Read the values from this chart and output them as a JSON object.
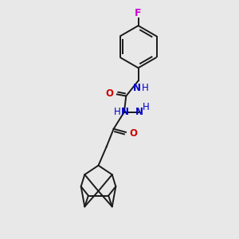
{
  "background_color": "#e8e8e8",
  "bond_color": "#1a1a1a",
  "nitrogen_color": "#0000cc",
  "oxygen_color": "#cc0000",
  "fluorine_color": "#cc00cc",
  "figsize": [
    3.0,
    3.0
  ],
  "dpi": 100,
  "xlim": [
    0,
    10
  ],
  "ylim": [
    0,
    10
  ]
}
